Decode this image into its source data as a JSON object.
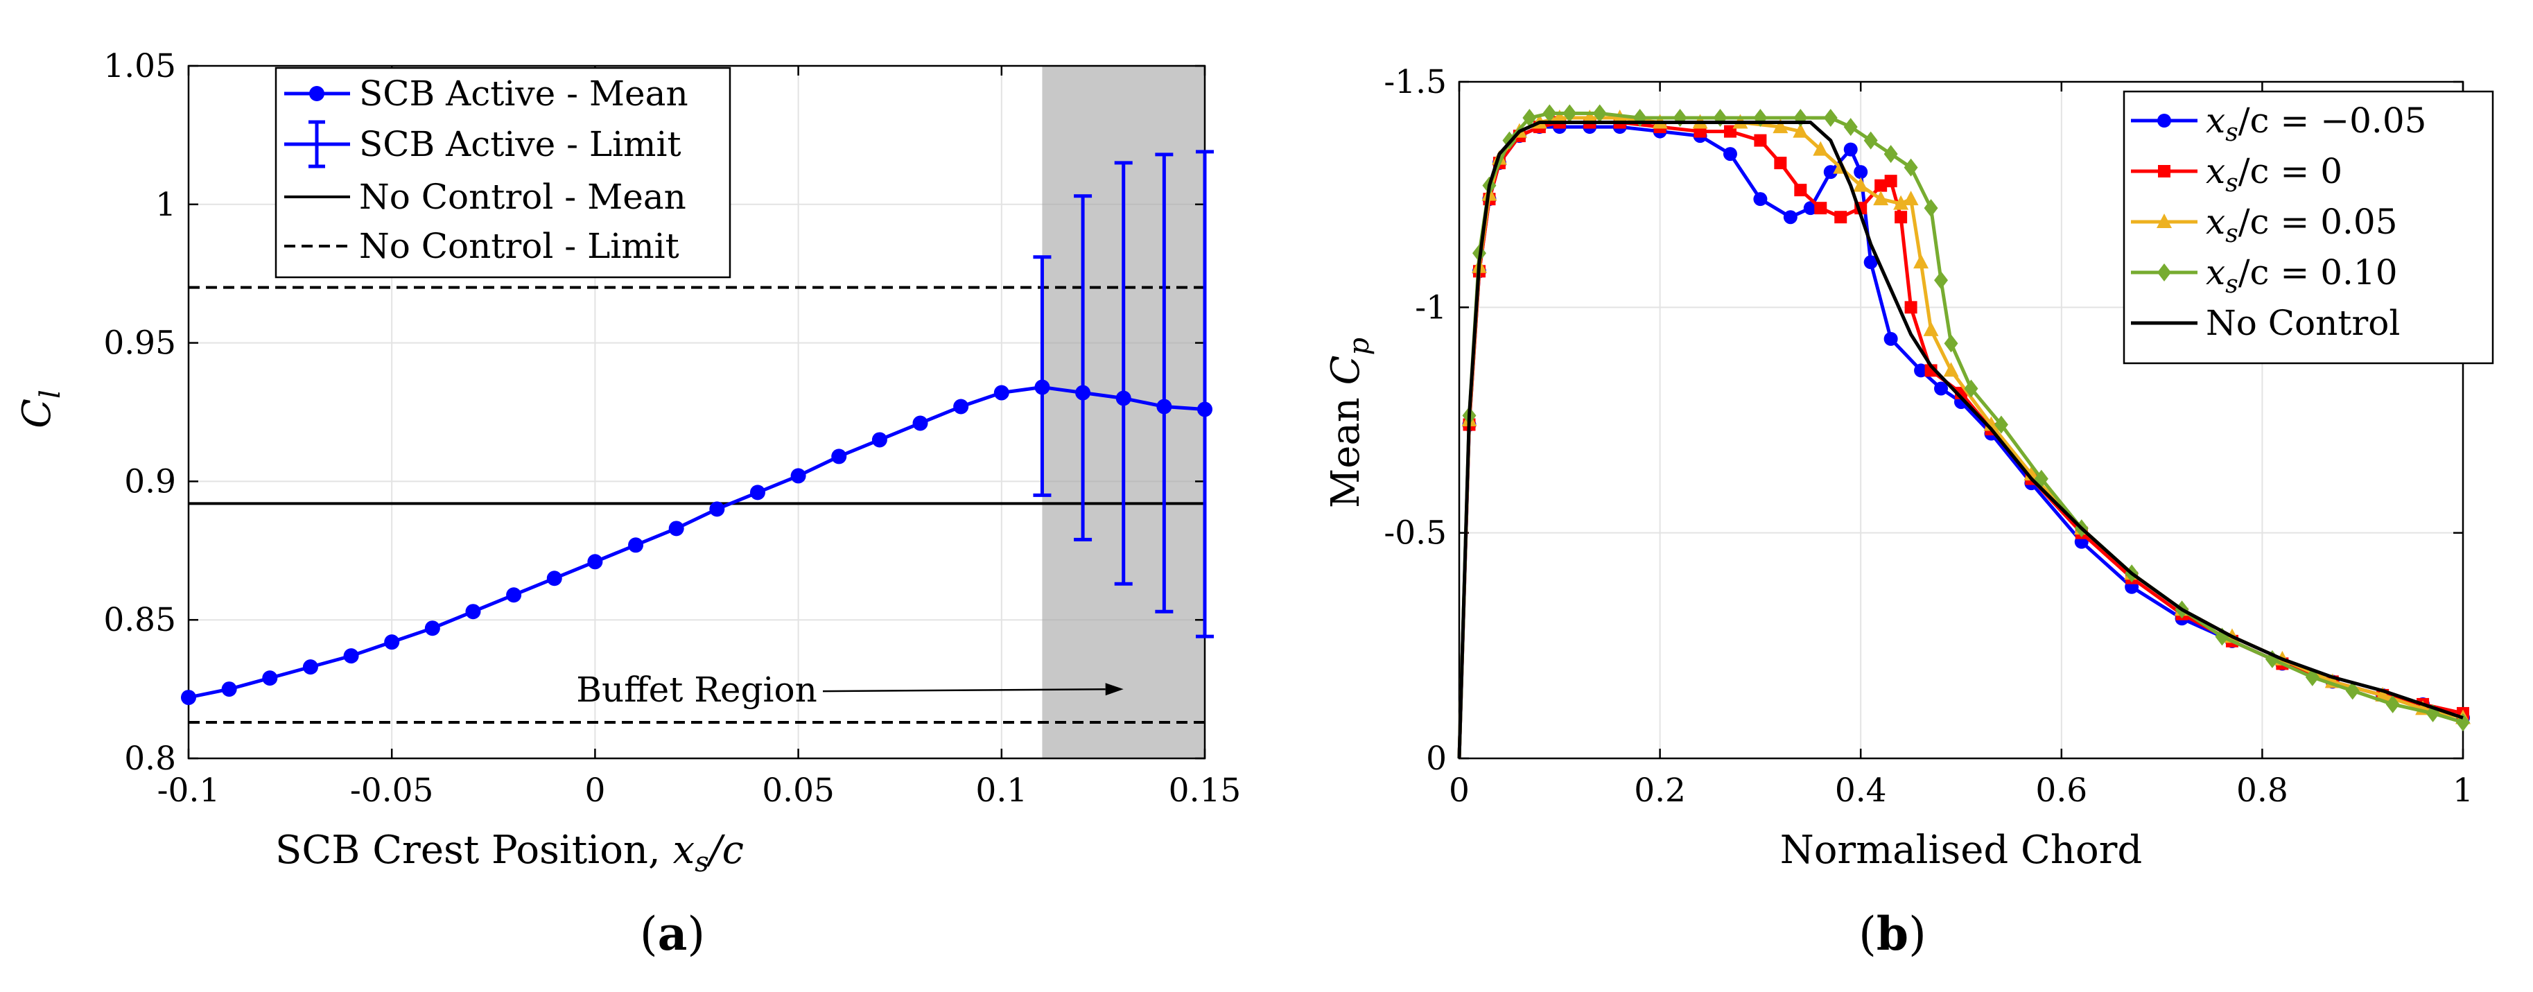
{
  "chart_data": [
    {
      "id": "a",
      "type": "line",
      "caption": {
        "open": "(",
        "letter": "a",
        "close": ")"
      },
      "xlabel": {
        "text": "SCB Crest Position, ",
        "math": "x",
        "sub": "s",
        "after": "/c"
      },
      "ylabel": {
        "math": "C",
        "sub": "l"
      },
      "xlim": [
        -0.1,
        0.15
      ],
      "ylim": [
        0.8,
        1.05
      ],
      "xticks": [
        -0.1,
        -0.05,
        0,
        0.05,
        0.1,
        0.15
      ],
      "xtick_labels": [
        "-0.1",
        "-0.05",
        "0",
        "0.05",
        "0.1",
        "0.15"
      ],
      "yticks": [
        0.8,
        0.85,
        0.9,
        0.95,
        1,
        1.05
      ],
      "ytick_labels": [
        "0.8",
        "0.85",
        "0.9",
        "0.95",
        "1",
        "1.05"
      ],
      "grid": true,
      "shaded_region": {
        "x": [
          0.11,
          0.15
        ],
        "color": "#c8c8c8"
      },
      "annotation": {
        "text": "Buffet Region",
        "data_x": 0.025,
        "data_y": 0.8205,
        "arrow_to": [
          0.13,
          0.825
        ]
      },
      "legend_location": "top-left",
      "series": [
        {
          "name": "SCB Active - Mean",
          "color": "#0000ff",
          "style": "solid",
          "marker": "circle",
          "x": [
            -0.1,
            -0.09,
            -0.08,
            -0.07,
            -0.06,
            -0.05,
            -0.04,
            -0.03,
            -0.02,
            -0.01,
            0,
            0.01,
            0.02,
            0.03,
            0.04,
            0.05,
            0.06,
            0.07,
            0.08,
            0.09,
            0.1,
            0.11,
            0.12,
            0.13,
            0.14,
            0.15
          ],
          "y": [
            0.822,
            0.825,
            0.829,
            0.833,
            0.837,
            0.842,
            0.847,
            0.853,
            0.859,
            0.865,
            0.871,
            0.877,
            0.883,
            0.89,
            0.896,
            0.902,
            0.909,
            0.915,
            0.921,
            0.927,
            0.932,
            0.934,
            0.932,
            0.93,
            0.927,
            0.926
          ]
        },
        {
          "name": "SCB Active - Limit",
          "color": "#0000ff",
          "style": "errorbar",
          "x": [
            0.11,
            0.12,
            0.13,
            0.14,
            0.15
          ],
          "low": [
            0.895,
            0.879,
            0.863,
            0.853,
            0.844
          ],
          "high": [
            0.981,
            1.003,
            1.015,
            1.018,
            1.019
          ]
        },
        {
          "name": "No Control - Mean",
          "color": "#000000",
          "style": "solid",
          "y": 0.892
        },
        {
          "name": "No Control - Limit",
          "color": "#000000",
          "style": "dashed",
          "y": [
            0.813,
            0.97
          ]
        }
      ]
    },
    {
      "id": "b",
      "type": "line",
      "caption": {
        "open": "(",
        "letter": "b",
        "close": ")"
      },
      "xlabel": {
        "text": "Normalised Chord"
      },
      "ylabel": {
        "text": "Mean ",
        "math": "C",
        "sub": "p"
      },
      "xlim": [
        0,
        1
      ],
      "ylim_reversed": [
        -1.5,
        0
      ],
      "xticks": [
        0,
        0.2,
        0.4,
        0.6,
        0.8,
        1
      ],
      "xtick_labels": [
        "0",
        "0.2",
        "0.4",
        "0.6",
        "0.8",
        "1"
      ],
      "yticks": [
        -1.5,
        -1,
        -0.5,
        0
      ],
      "ytick_labels": [
        "-1.5",
        "-1",
        "-0.5",
        "0"
      ],
      "grid": true,
      "legend_location": "top-right",
      "series": [
        {
          "name": "x_s/c = −0.05",
          "label": {
            "math": "x",
            "sub": "s",
            "rest": "/c = −0.05"
          },
          "color": "#0000ff",
          "marker": "circle",
          "x": [
            0,
            0.01,
            0.02,
            0.03,
            0.04,
            0.06,
            0.08,
            0.1,
            0.13,
            0.16,
            0.2,
            0.24,
            0.27,
            0.3,
            0.33,
            0.35,
            0.37,
            0.39,
            0.4,
            0.41,
            0.43,
            0.46,
            0.48,
            0.5,
            0.53,
            0.57,
            0.62,
            0.67,
            0.72,
            0.77,
            0.82,
            0.87,
            0.92,
            0.96,
            1
          ],
          "y": [
            0,
            -0.74,
            -1.08,
            -1.24,
            -1.32,
            -1.38,
            -1.4,
            -1.4,
            -1.4,
            -1.4,
            -1.39,
            -1.38,
            -1.34,
            -1.24,
            -1.2,
            -1.22,
            -1.3,
            -1.35,
            -1.3,
            -1.1,
            -0.93,
            -0.86,
            -0.82,
            -0.79,
            -0.72,
            -0.61,
            -0.48,
            -0.38,
            -0.31,
            -0.26,
            -0.21,
            -0.17,
            -0.14,
            -0.12,
            -0.09
          ]
        },
        {
          "name": "x_s/c = 0",
          "label": {
            "math": "x",
            "sub": "s",
            "rest": "/c = 0"
          },
          "color": "#ff0000",
          "marker": "square",
          "x": [
            0,
            0.01,
            0.02,
            0.03,
            0.04,
            0.06,
            0.08,
            0.1,
            0.13,
            0.16,
            0.2,
            0.24,
            0.27,
            0.3,
            0.32,
            0.34,
            0.36,
            0.38,
            0.4,
            0.42,
            0.43,
            0.44,
            0.45,
            0.47,
            0.5,
            0.53,
            0.57,
            0.62,
            0.67,
            0.72,
            0.77,
            0.82,
            0.87,
            0.92,
            0.96,
            1
          ],
          "y": [
            0,
            -0.74,
            -1.08,
            -1.24,
            -1.32,
            -1.38,
            -1.4,
            -1.41,
            -1.41,
            -1.41,
            -1.4,
            -1.39,
            -1.39,
            -1.37,
            -1.32,
            -1.26,
            -1.22,
            -1.2,
            -1.22,
            -1.27,
            -1.28,
            -1.2,
            -1.0,
            -0.86,
            -0.81,
            -0.73,
            -0.62,
            -0.5,
            -0.4,
            -0.32,
            -0.26,
            -0.21,
            -0.17,
            -0.14,
            -0.12,
            -0.1
          ]
        },
        {
          "name": "x_s/c = 0.05",
          "label": {
            "math": "x",
            "sub": "s",
            "rest": "/c = 0.05"
          },
          "color": "#edb120",
          "marker": "triangle",
          "x": [
            0,
            0.01,
            0.02,
            0.03,
            0.04,
            0.06,
            0.08,
            0.1,
            0.13,
            0.16,
            0.2,
            0.24,
            0.28,
            0.32,
            0.34,
            0.36,
            0.38,
            0.4,
            0.42,
            0.44,
            0.45,
            0.46,
            0.47,
            0.49,
            0.53,
            0.57,
            0.62,
            0.67,
            0.72,
            0.77,
            0.82,
            0.87,
            0.92,
            0.96,
            1
          ],
          "y": [
            0,
            -0.75,
            -1.09,
            -1.25,
            -1.33,
            -1.39,
            -1.41,
            -1.42,
            -1.42,
            -1.42,
            -1.41,
            -1.41,
            -1.41,
            -1.4,
            -1.39,
            -1.35,
            -1.31,
            -1.27,
            -1.24,
            -1.23,
            -1.24,
            -1.1,
            -0.95,
            -0.86,
            -0.74,
            -0.63,
            -0.51,
            -0.41,
            -0.33,
            -0.27,
            -0.22,
            -0.17,
            -0.14,
            -0.11,
            -0.09
          ]
        },
        {
          "name": "x_s/c = 0.10",
          "label": {
            "math": "x",
            "sub": "s",
            "rest": "/c = 0.10"
          },
          "color": "#77ac30",
          "marker": "diamond",
          "x": [
            0,
            0.01,
            0.02,
            0.03,
            0.05,
            0.07,
            0.09,
            0.11,
            0.14,
            0.18,
            0.22,
            0.26,
            0.3,
            0.34,
            0.37,
            0.39,
            0.41,
            0.43,
            0.45,
            0.47,
            0.48,
            0.49,
            0.51,
            0.54,
            0.58,
            0.62,
            0.67,
            0.72,
            0.76,
            0.81,
            0.85,
            0.89,
            0.93,
            0.97,
            1
          ],
          "y": [
            0,
            -0.76,
            -1.12,
            -1.27,
            -1.37,
            -1.42,
            -1.43,
            -1.43,
            -1.43,
            -1.42,
            -1.42,
            -1.42,
            -1.42,
            -1.42,
            -1.42,
            -1.4,
            -1.37,
            -1.34,
            -1.31,
            -1.22,
            -1.06,
            -0.92,
            -0.82,
            -0.74,
            -0.62,
            -0.51,
            -0.41,
            -0.33,
            -0.27,
            -0.22,
            -0.18,
            -0.15,
            -0.12,
            -0.1,
            -0.08
          ]
        },
        {
          "name": "No Control",
          "label": {
            "text": "No Control"
          },
          "color": "#000000",
          "marker": "none",
          "x": [
            0,
            0.01,
            0.02,
            0.03,
            0.04,
            0.06,
            0.08,
            0.1,
            0.13,
            0.16,
            0.2,
            0.24,
            0.28,
            0.32,
            0.35,
            0.37,
            0.39,
            0.41,
            0.43,
            0.45,
            0.47,
            0.5,
            0.53,
            0.57,
            0.62,
            0.67,
            0.72,
            0.77,
            0.82,
            0.87,
            0.92,
            0.96,
            1
          ],
          "y": [
            0,
            -0.76,
            -1.1,
            -1.27,
            -1.34,
            -1.39,
            -1.41,
            -1.41,
            -1.41,
            -1.41,
            -1.41,
            -1.41,
            -1.41,
            -1.41,
            -1.41,
            -1.37,
            -1.27,
            -1.14,
            -1.04,
            -0.94,
            -0.87,
            -0.8,
            -0.73,
            -0.62,
            -0.51,
            -0.41,
            -0.33,
            -0.27,
            -0.22,
            -0.18,
            -0.15,
            -0.12,
            -0.09
          ]
        }
      ]
    }
  ]
}
